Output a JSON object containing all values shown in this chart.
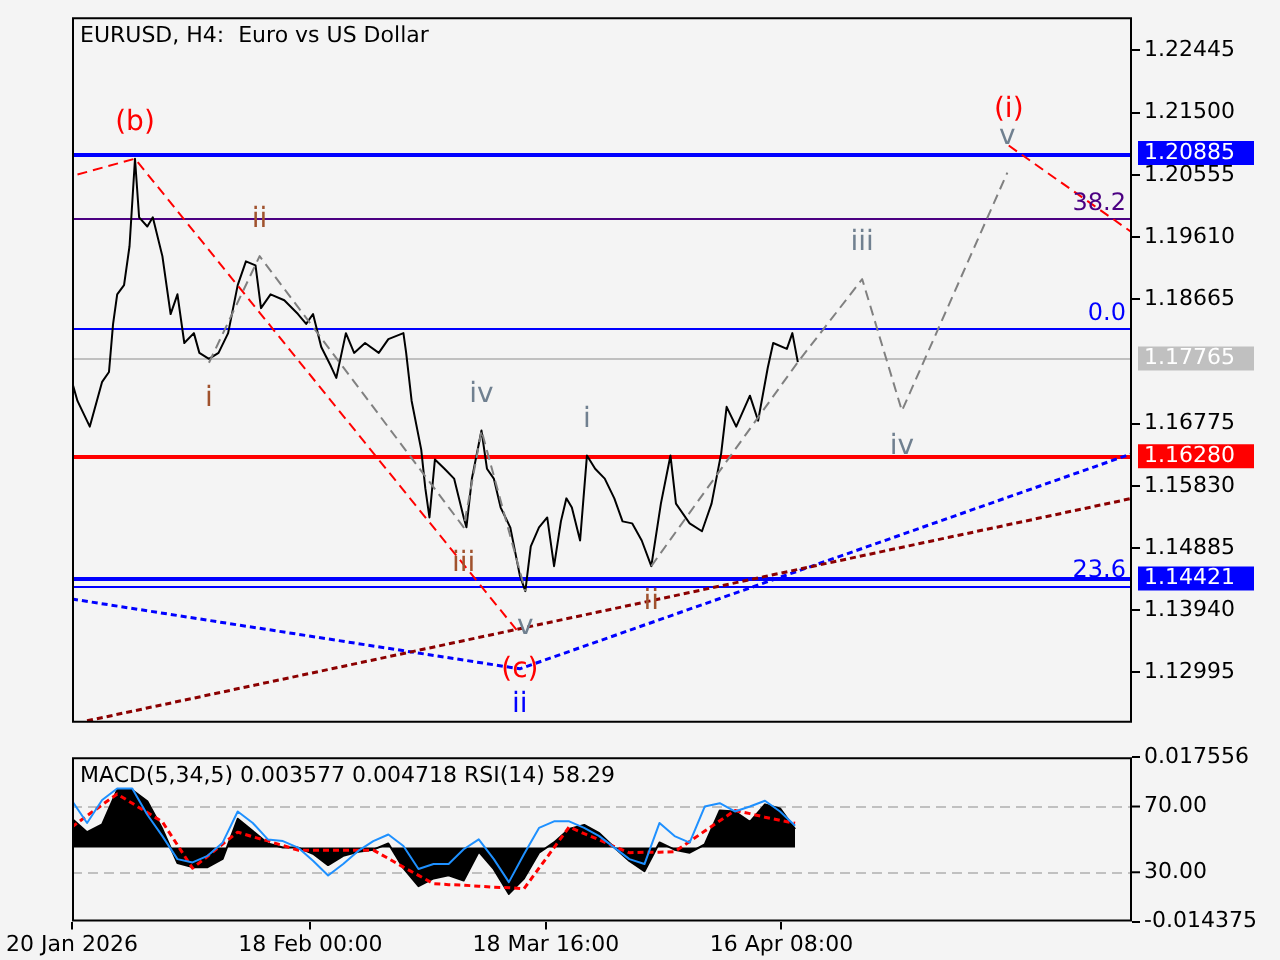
{
  "chart_data": [
    {
      "type": "line",
      "title": "EURUSD, H4:  Euro vs US Dollar",
      "xlim": [
        "2026-01-20T00:00",
        "2026-05-29T00:00"
      ],
      "ylim": [
        1.1223,
        1.2295
      ],
      "yticks": [
        1.22445,
        {
          "value": 1.215,
          "label": "1.21500"
        },
        1.20555,
        {
          "value": 1.1961,
          "label": "1.19610"
        },
        1.18665,
        1.16775,
        {
          "value": 1.1583,
          "label": "1.15830"
        },
        1.14885,
        {
          "value": 1.1394,
          "label": "1.13940"
        },
        1.12995
      ],
      "tick_labels": "y",
      "grid": false,
      "legend": false,
      "marker": "none",
      "series": [
        {
          "color": "#000000",
          "x": [
            "2026-01-20T00:00",
            "2026-01-20T16:00",
            "2026-01-22T04:00",
            "2026-01-23T16:00",
            "2026-01-24T12:00",
            "2026-01-25T00:00",
            "2026-01-25T12:00",
            "2026-01-26T08:00",
            "2026-01-27T00:00",
            "2026-01-27T16:00",
            "2026-01-28T04:00",
            "2026-01-29T04:00",
            "2026-01-29T20:00",
            "2026-01-31T00:00",
            "2026-02-01T00:00",
            "2026-02-01T20:00",
            "2026-02-02T16:00",
            "2026-02-03T20:00",
            "2026-02-04T12:00",
            "2026-02-05T16:00",
            "2026-02-06T20:00",
            "2026-02-08T00:00",
            "2026-02-09T04:00",
            "2026-02-10T04:00",
            "2026-02-11T08:00",
            "2026-02-12T00:00",
            "2026-02-13T04:00",
            "2026-02-14T20:00",
            "2026-02-16T12:00",
            "2026-02-17T12:00",
            "2026-02-18T08:00",
            "2026-02-19T08:00",
            "2026-02-20T12:00",
            "2026-02-21T04:00",
            "2026-02-22T08:00",
            "2026-02-23T08:00",
            "2026-02-24T16:00",
            "2026-02-26T08:00",
            "2026-02-27T12:00",
            "2026-03-01T08:00",
            "2026-03-01T16:00",
            "2026-03-02T08:00",
            "2026-03-03T12:00",
            "2026-03-04T00:00",
            "2026-03-04T12:00",
            "2026-03-05T04:00",
            "2026-03-06T08:00",
            "2026-03-07T12:00",
            "2026-03-08T16:00",
            "2026-03-09T00:00",
            "2026-03-09T16:00",
            "2026-03-10T20:00",
            "2026-03-11T12:00",
            "2026-03-12T08:00",
            "2026-03-13T04:00",
            "2026-03-14T08:00",
            "2026-03-15T12:00",
            "2026-03-16T04:00",
            "2026-03-16T20:00",
            "2026-03-17T20:00",
            "2026-03-18T20:00",
            "2026-03-19T16:00",
            "2026-03-20T12:00",
            "2026-03-21T04:00",
            "2026-03-21T20:00",
            "2026-03-22T20:00",
            "2026-03-23T16:00",
            "2026-03-24T16:00",
            "2026-03-25T20:00",
            "2026-03-27T00:00",
            "2026-03-28T00:00",
            "2026-03-29T04:00",
            "2026-03-30T08:00",
            "2026-03-31T12:00",
            "2026-04-01T16:00",
            "2026-04-02T20:00",
            "2026-04-03T12:00",
            "2026-04-05T04:00",
            "2026-04-06T16:00",
            "2026-04-07T20:00",
            "2026-04-09T00:00",
            "2026-04-09T16:00",
            "2026-04-10T20:00",
            "2026-04-12T12:00",
            "2026-04-13T12:00",
            "2026-04-14T16:00",
            "2026-04-15T08:00",
            "2026-04-17T00:00",
            "2026-04-17T16:00",
            "2026-04-18T08:00"
          ],
          "values": [
            1.1741,
            1.1712,
            1.1673,
            1.1741,
            1.1756,
            1.1829,
            1.1874,
            1.1888,
            1.1947,
            1.208,
            1.1991,
            1.1977,
            1.1991,
            1.1932,
            1.1844,
            1.1874,
            1.18,
            1.1815,
            1.1785,
            1.1776,
            1.1785,
            1.1815,
            1.1888,
            1.1924,
            1.1918,
            1.1853,
            1.1874,
            1.1865,
            1.1844,
            1.1829,
            1.1844,
            1.1794,
            1.1765,
            1.1747,
            1.1815,
            1.1785,
            1.18,
            1.1785,
            1.1806,
            1.1815,
            1.1785,
            1.1712,
            1.1638,
            1.1579,
            1.1535,
            1.1623,
            1.1609,
            1.1594,
            1.1535,
            1.152,
            1.1594,
            1.1667,
            1.1609,
            1.1594,
            1.155,
            1.152,
            1.1447,
            1.1423,
            1.1491,
            1.152,
            1.1535,
            1.1461,
            1.1529,
            1.1564,
            1.155,
            1.15,
            1.1629,
            1.1609,
            1.1594,
            1.1564,
            1.1529,
            1.1526,
            1.15,
            1.1461,
            1.1556,
            1.1629,
            1.1556,
            1.1526,
            1.1514,
            1.1556,
            1.1632,
            1.1703,
            1.1673,
            1.172,
            1.1682,
            1.1762,
            1.18,
            1.1791,
            1.1815,
            1.1771
          ]
        },
        {
          "color": "#808080",
          "line_style": "dashed",
          "x": [
            "2026-03-31T12:00",
            "2026-04-18T08:00",
            "2026-04-26T04:00",
            "2026-05-01T00:00",
            "2026-05-13T20:00"
          ],
          "values": [
            1.1461,
            1.1771,
            1.1897,
            1.1697,
            1.2059
          ]
        },
        {
          "color": "#808080",
          "line_style": "dashed",
          "x": [
            "2026-02-05T16:00",
            "2026-02-11T20:00",
            "2026-03-08T16:00",
            "2026-03-10T20:00",
            "2026-03-16T04:00"
          ],
          "values": [
            1.177,
            1.1932,
            1.152,
            1.1667,
            1.1423
          ]
        },
        {
          "color": "#ff0000",
          "line_style": "dashed",
          "x": [
            "2026-01-20T16:00",
            "2026-01-27T16:00",
            "2026-03-15T12:00"
          ],
          "values": [
            1.2056,
            1.208,
            1.1358
          ]
        },
        {
          "color": "#ff0000",
          "line_style": "dashed",
          "x": [
            "2026-05-14T00:00",
            "2026-05-29T00:00"
          ],
          "values": [
            1.21,
            1.1968
          ]
        },
        {
          "color": "#0000ff",
          "line_style": "dotted",
          "x": [
            "2026-01-20T00:00",
            "2026-03-15T12:00",
            "2026-05-29T00:00"
          ],
          "values": [
            1.1411,
            1.1305,
            1.1632
          ]
        },
        {
          "color": "#8b0000",
          "line_style": "dotted",
          "x": [
            "2026-01-21T20:00",
            "2026-05-29T00:00"
          ],
          "values": [
            1.1226,
            1.1564
          ]
        }
      ],
      "ref_lines": [
        {
          "axis": "y",
          "value": 1.20885,
          "label": "1.20885",
          "color": "#0000ff"
        },
        {
          "axis": "y",
          "value": 1.1991,
          "color": "#4b0082"
        },
        {
          "axis": "y",
          "value": 1.1823,
          "color": "#0000ff"
        },
        {
          "axis": "y",
          "value": 1.17765,
          "label": "1.17765",
          "color": "#c0c0c0"
        },
        {
          "axis": "y",
          "value": 1.1628,
          "label": "1.16280",
          "color": "#ff0000"
        },
        {
          "axis": "y",
          "value": 1.14421,
          "label": "1.14421",
          "color": "#0000ff"
        },
        {
          "axis": "y",
          "value": 1.1432,
          "color": "#0000ff"
        }
      ],
      "annotations": [
        {
          "text": "(b)",
          "x": "2026-01-27T16:00",
          "y": 1.208
        },
        {
          "text": "ii",
          "x": "2026-02-11T20:00",
          "y": 1.1932
        },
        {
          "text": "i",
          "x": "2026-02-05T16:00",
          "y": 1.177
        },
        {
          "text": "iv",
          "x": "2026-03-10T20:00",
          "y": 1.1667
        },
        {
          "text": "iii",
          "x": "2026-03-08T16:00",
          "y": 1.152
        },
        {
          "text": "v",
          "x": "2026-03-16T04:00",
          "y": 1.1423
        },
        {
          "text": "(c)",
          "x": "2026-03-15T12:00",
          "y": 1.1358
        },
        {
          "text": "ii",
          "x": "2026-03-15T12:00",
          "y": 1.1305
        },
        {
          "text": "i",
          "x": "2026-03-23T16:00",
          "y": 1.1629
        },
        {
          "text": "ii",
          "x": "2026-03-31T12:00",
          "y": 1.1461
        },
        {
          "text": "iii",
          "x": "2026-04-26T04:00",
          "y": 1.1897
        },
        {
          "text": "iv",
          "x": "2026-05-01T00:00",
          "y": 1.1697
        },
        {
          "text": "v",
          "x": "2026-05-13T20:00",
          "y": 1.2059
        },
        {
          "text": "(i)",
          "x": "2026-05-14T00:00",
          "y": 1.21
        },
        {
          "text": "38.2",
          "x": "2026-05-29T00:00",
          "y": 1.1991
        },
        {
          "text": "0.0",
          "x": "2026-05-29T00:00",
          "y": 1.1823
        },
        {
          "text": "23.6",
          "x": "2026-05-29T00:00",
          "y": 1.1432
        }
      ]
    },
    {
      "type": "area",
      "title": "MACD(5,34,5) 0.003577 0.004718 RSI(14) 58.29",
      "xlim": [
        "2026-01-20T00:00",
        "2026-05-29T00:00"
      ],
      "xticks": [
        {
          "value": "2026-01-20T00:00",
          "label": "20 Jan 2026"
        },
        {
          "value": "2026-02-18T00:00",
          "label": "18 Feb 00:00"
        },
        {
          "value": "2026-03-18T16:00",
          "label": "18 Mar 16:00"
        },
        {
          "value": "2026-04-16T08:00",
          "label": "16 Apr 08:00"
        }
      ],
      "ylim": [
        -0.014375,
        0.017556
      ],
      "yticks": [
        0.017556,
        -0.014375
      ],
      "y2lim": [
        0,
        100
      ],
      "y2ticks": [
        {
          "value": 70,
          "label": "70.00"
        },
        {
          "value": 30,
          "label": "30.00"
        }
      ],
      "grid": false,
      "legend": false,
      "marker": "none",
      "x": [
        "2026-01-20T00:00",
        "2026-01-21T20:00",
        "2026-01-23T16:00",
        "2026-01-25T12:00",
        "2026-01-27T08:00",
        "2026-01-29T04:00",
        "2026-01-31T00:00",
        "2026-02-01T20:00",
        "2026-02-03T16:00",
        "2026-02-05T12:00",
        "2026-02-07T08:00",
        "2026-02-09T04:00",
        "2026-02-11T00:00",
        "2026-02-12T20:00",
        "2026-02-14T16:00",
        "2026-02-16T12:00",
        "2026-02-18T08:00",
        "2026-02-20T04:00",
        "2026-02-22T00:00",
        "2026-02-23T20:00",
        "2026-02-25T16:00",
        "2026-02-27T12:00",
        "2026-03-01T08:00",
        "2026-03-03T04:00",
        "2026-03-05T00:00",
        "2026-03-06T20:00",
        "2026-03-08T16:00",
        "2026-03-10T12:00",
        "2026-03-12T08:00",
        "2026-03-14T04:00",
        "2026-03-16T00:00",
        "2026-03-17T20:00",
        "2026-03-19T16:00",
        "2026-03-21T12:00",
        "2026-03-23T08:00",
        "2026-03-25T04:00",
        "2026-03-27T00:00",
        "2026-03-28T20:00",
        "2026-03-30T16:00",
        "2026-04-01T12:00",
        "2026-04-03T08:00",
        "2026-04-05T04:00",
        "2026-04-07T00:00",
        "2026-04-08T20:00",
        "2026-04-10T16:00",
        "2026-04-12T12:00",
        "2026-04-14T08:00",
        "2026-04-16T04:00",
        "2026-04-18T00:00"
      ],
      "series": [
        {
          "color": "#000000",
          "values": [
            0.0056,
            0.003,
            0.0045,
            0.0112,
            0.0112,
            0.009,
            0.0036,
            -0.003,
            -0.0038,
            -0.0038,
            -0.0022,
            0.0056,
            0.0032,
            0.0008,
            0,
            0,
            -0.0012,
            -0.0034,
            -0.0016,
            -0.0008,
            -0.0004,
            0.0008,
            -0.004,
            -0.0075,
            -0.006,
            -0.0054,
            -0.0064,
            -0.0008,
            -0.0042,
            -0.009,
            -0.006,
            -0.001,
            0.001,
            0.0036,
            0.0044,
            0.0028,
            0,
            -0.0026,
            -0.0046,
            0.001,
            -0.0004,
            -0.001,
            0.0006,
            0.0072,
            0.007,
            0.005,
            0.0084,
            0.0076,
            0.003577
          ]
        },
        {
          "type": "line",
          "color": "#ff0000",
          "line_style": "dotted",
          "values": [
            0.004,
            0.0062,
            0.0083,
            0.0104,
            0.0086,
            0.0068,
            0.005,
            0.0005,
            -0.004,
            -0.0017,
            0.0007,
            0.003,
            0.0021,
            0.0013,
            0.0004,
            -0.0005,
            -0.0005,
            -0.0005,
            -0.0005,
            -0.0005,
            -0.0005,
            -0.0021,
            -0.0038,
            -0.0054,
            -0.007,
            -0.0072,
            -0.0073,
            -0.0075,
            -0.0077,
            -0.0078,
            -0.008,
            -0.004,
            0,
            0.004,
            0.0027,
            0.0015,
            0.0002,
            -0.001,
            -0.0009,
            -0.0009,
            -0.0008,
            0.0012,
            0.0032,
            0.0052,
            0.0072,
            0.0066,
            0.0059,
            0.0053,
            0.004718
          ]
        },
        {
          "type": "line",
          "axis": "y2",
          "color": "#1e90ff",
          "values": [
            73.5,
            60,
            74,
            81,
            81,
            65,
            52,
            38,
            36,
            40,
            48,
            67,
            60,
            50,
            49,
            45,
            37,
            28,
            35,
            43,
            49,
            53,
            46,
            32,
            35,
            35,
            44,
            50,
            38,
            24,
            41,
            57,
            61,
            61,
            57,
            52,
            45,
            38,
            35,
            60,
            52,
            48,
            70,
            72,
            67,
            70,
            73.5,
            67,
            58.29
          ]
        }
      ],
      "ref_lines": [
        {
          "axis": "y2",
          "value": 70,
          "color": "#c0c0c0",
          "line_style": "dashed"
        },
        {
          "axis": "y2",
          "value": 30,
          "color": "#c0c0c0",
          "line_style": "dashed"
        }
      ]
    }
  ]
}
